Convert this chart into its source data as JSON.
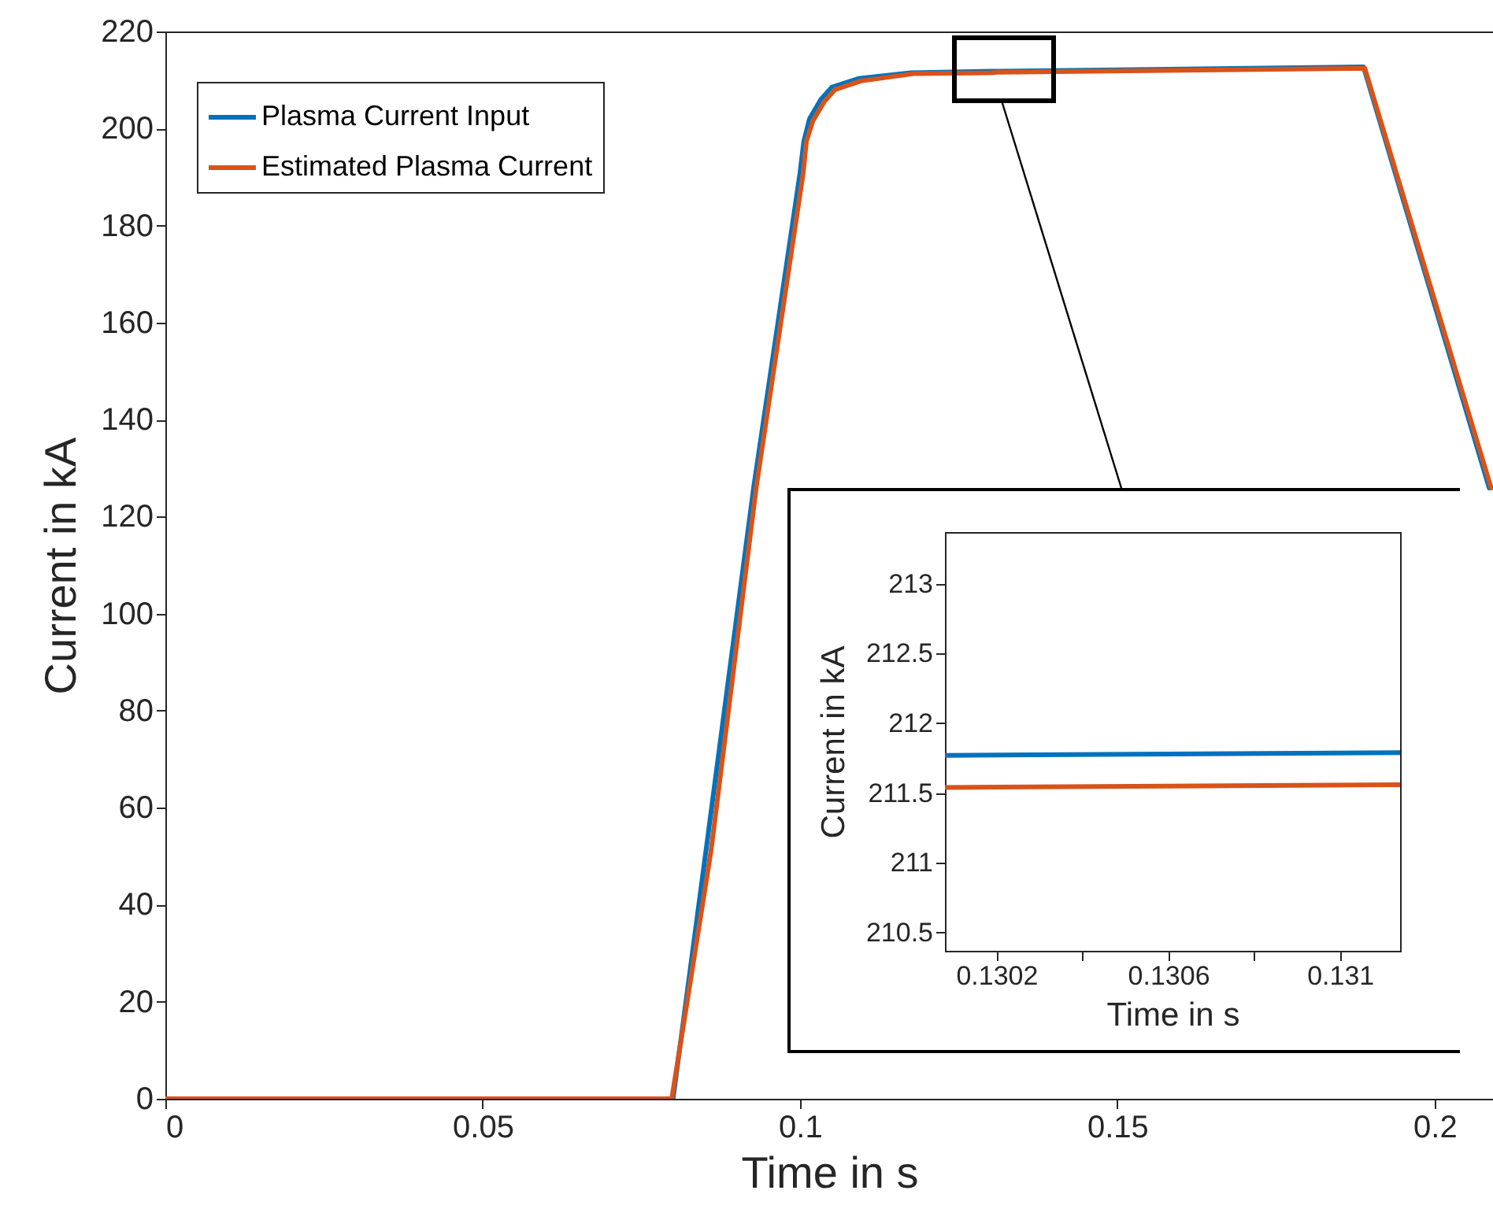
{
  "chart_data": [
    {
      "type": "line",
      "xlabel": "Time in s",
      "ylabel": "Current in kA",
      "xlim": [
        0,
        0.2092
      ],
      "ylim": [
        0,
        220
      ],
      "xticks": [
        0,
        0.05,
        0.1,
        0.15,
        0.2
      ],
      "yticks": [
        0,
        20,
        40,
        60,
        80,
        100,
        120,
        140,
        160,
        180,
        200,
        220
      ],
      "legend": "top left",
      "line_style": "solid",
      "series": [
        {
          "name": "Plasma Current Input",
          "color": "#0072bd",
          "x": [
            0,
            0.08,
            0.0852,
            0.0927,
            0.1,
            0.1006,
            0.1015,
            0.1033,
            0.105,
            0.1092,
            0.1175,
            0.1302,
            0.1311,
            0.1888,
            0.2086
          ],
          "values": [
            0,
            0,
            51.3,
            126,
            190.8,
            197.3,
            202,
            206,
            208.5,
            210.3,
            211.5,
            211.8,
            211.8,
            212.7,
            125.9
          ]
        },
        {
          "name": "Estimated Plasma Current",
          "color": "#d95319",
          "x": [
            0,
            0.0798,
            0.086,
            0.0931,
            0.1005,
            0.101,
            0.102,
            0.1038,
            0.1055,
            0.1096,
            0.1179,
            0.1302,
            0.1311,
            0.189,
            0.2089
          ],
          "values": [
            0,
            0,
            51.3,
            126,
            190.8,
            197.3,
            201.5,
            205.5,
            208,
            209.8,
            211.3,
            211.5,
            211.6,
            212.4,
            125.9
          ]
        }
      ]
    },
    {
      "type": "line",
      "xlabel": "Time in s",
      "ylabel": "Current in kA",
      "xlim": [
        0.13008,
        0.13114
      ],
      "ylim": [
        210.37,
        213.37
      ],
      "xticks": [
        0.1302,
        {
          "value": 0.1304,
          "label": null
        },
        0.1306,
        {
          "value": 0.1308,
          "label": null
        },
        0.131
      ],
      "yticks": [
        210.5,
        211,
        211.5,
        212,
        212.5,
        213
      ],
      "line_style": "solid",
      "series": [
        {
          "color": "#0072bd",
          "x": [
            0.13008,
            0.13114
          ],
          "values": [
            211.77,
            211.79
          ]
        },
        {
          "color": "#d95319",
          "x": [
            0.13008,
            0.13114
          ],
          "values": [
            211.54,
            211.56
          ]
        }
      ]
    }
  ]
}
